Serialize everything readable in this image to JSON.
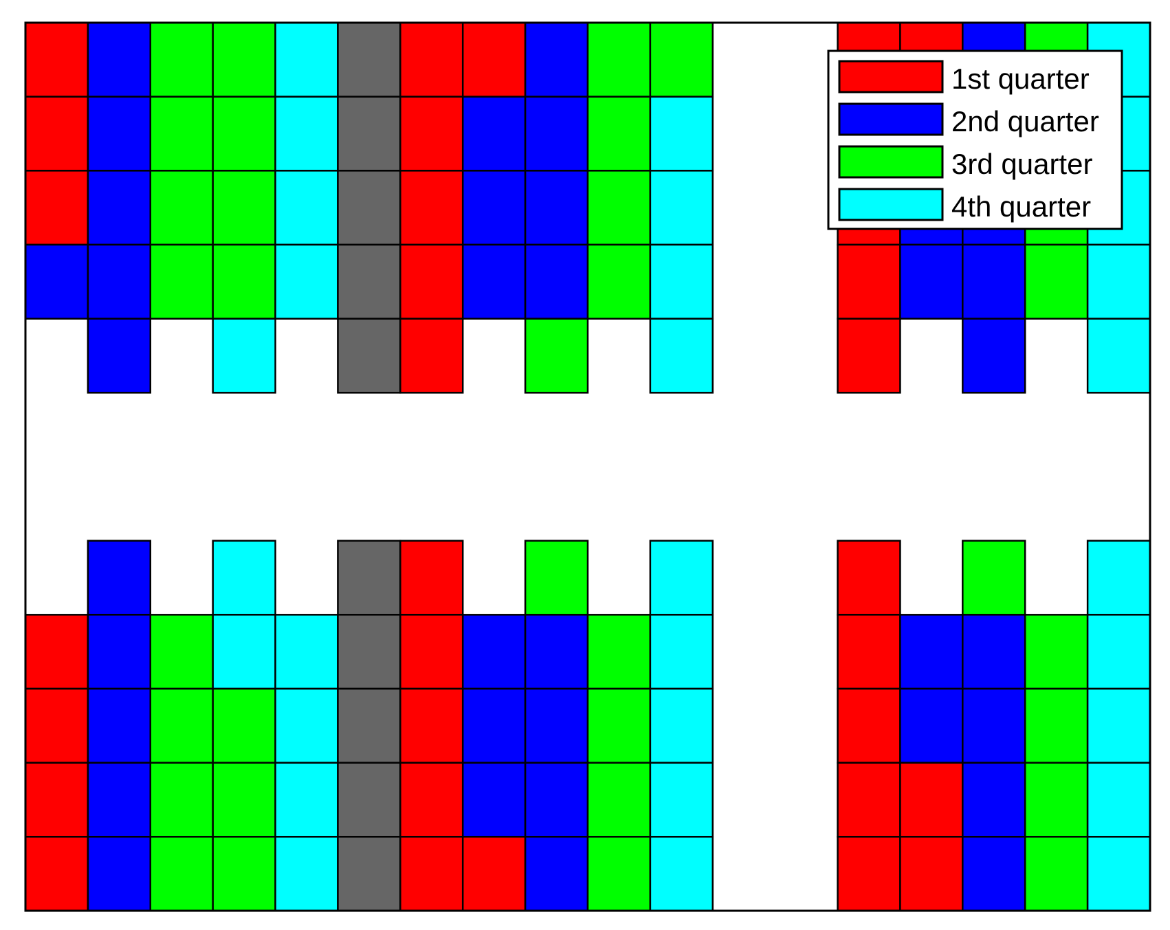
{
  "colors": {
    "q1": "#ff0000",
    "q2": "#0000ff",
    "q3": "#00ff00",
    "q4": "#00ffff",
    "gray": "#666666",
    "frame": "#000000",
    "background": "#ffffff"
  },
  "legend": {
    "placement": "top-right",
    "items": [
      {
        "key": "q1",
        "label": "1st quarter"
      },
      {
        "key": "q2",
        "label": "2nd quarter"
      },
      {
        "key": "q3",
        "label": "3rd quarter"
      },
      {
        "key": "q4",
        "label": "4th quarter"
      }
    ]
  },
  "grid": {
    "columns": 18,
    "rows": 12,
    "cells": [
      [
        "q1",
        "q2",
        "q3",
        "q3",
        "q4",
        "gray",
        "q1",
        "q1",
        "q2",
        "q3",
        "q3",
        null,
        null,
        "q1",
        "q1",
        "q2",
        "q3",
        "q4"
      ],
      [
        "q1",
        "q2",
        "q3",
        "q3",
        "q4",
        "gray",
        "q1",
        "q2",
        "q2",
        "q3",
        "q4",
        null,
        null,
        "q1",
        "q1",
        "q2",
        "q3",
        "q4"
      ],
      [
        "q1",
        "q2",
        "q3",
        "q3",
        "q4",
        "gray",
        "q1",
        "q2",
        "q2",
        "q3",
        "q4",
        null,
        null,
        "q1",
        "q2",
        "q2",
        "q3",
        "q4"
      ],
      [
        "q2",
        "q2",
        "q3",
        "q3",
        "q4",
        "gray",
        "q1",
        "q2",
        "q2",
        "q3",
        "q4",
        null,
        null,
        "q1",
        "q2",
        "q2",
        "q3",
        "q4"
      ],
      [
        null,
        "q2",
        null,
        "q4",
        null,
        "gray",
        "q1",
        null,
        "q3",
        null,
        "q4",
        null,
        null,
        "q1",
        null,
        "q2",
        null,
        "q4"
      ],
      [
        null,
        null,
        null,
        null,
        null,
        null,
        null,
        null,
        null,
        null,
        null,
        null,
        null,
        null,
        null,
        null,
        null,
        null
      ],
      [
        null,
        null,
        null,
        null,
        null,
        null,
        null,
        null,
        null,
        null,
        null,
        null,
        null,
        null,
        null,
        null,
        null,
        null
      ],
      [
        null,
        "q2",
        null,
        "q4",
        null,
        "gray",
        "q1",
        null,
        "q3",
        null,
        "q4",
        null,
        null,
        "q1",
        null,
        "q3",
        null,
        "q4"
      ],
      [
        "q1",
        "q2",
        "q3",
        "q4",
        "q4",
        "gray",
        "q1",
        "q2",
        "q2",
        "q3",
        "q4",
        null,
        null,
        "q1",
        "q2",
        "q2",
        "q3",
        "q4"
      ],
      [
        "q1",
        "q2",
        "q3",
        "q3",
        "q4",
        "gray",
        "q1",
        "q2",
        "q2",
        "q3",
        "q4",
        null,
        null,
        "q1",
        "q2",
        "q2",
        "q3",
        "q4"
      ],
      [
        "q1",
        "q2",
        "q3",
        "q3",
        "q4",
        "gray",
        "q1",
        "q2",
        "q2",
        "q3",
        "q4",
        null,
        null,
        "q1",
        "q1",
        "q2",
        "q3",
        "q4"
      ],
      [
        "q1",
        "q2",
        "q3",
        "q3",
        "q4",
        "gray",
        "q1",
        "q1",
        "q2",
        "q3",
        "q4",
        null,
        null,
        "q1",
        "q1",
        "q2",
        "q3",
        "q4"
      ]
    ]
  }
}
